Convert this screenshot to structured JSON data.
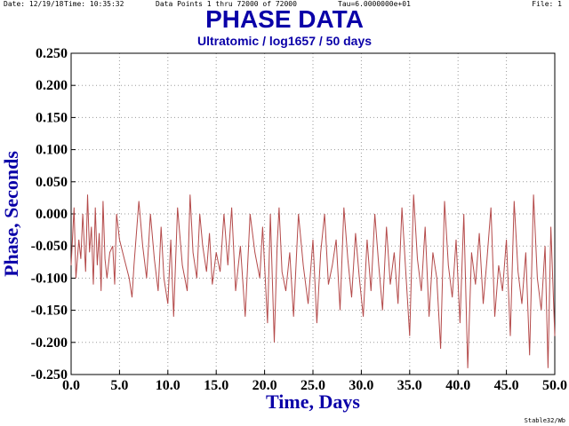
{
  "header": {
    "date": "Date: 12/19/18",
    "time": "Time: 10:35:32",
    "points": "Data Points 1 thru 72000 of 72000",
    "tau": "Tau=6.0000000e+01",
    "file": "File: 1"
  },
  "footer": {
    "program": "Stable32/Wb"
  },
  "colors": {
    "title": "#0a00a8",
    "trace": "#b44a4a",
    "grid": "#9a9a9a"
  },
  "chart_data": {
    "type": "line",
    "title": "PHASE DATA",
    "subtitle": "Ultratomic / log1657 / 50 days",
    "xlabel": "Time, Days",
    "ylabel": "Phase, Seconds",
    "xlim": [
      0,
      50
    ],
    "ylim": [
      -0.25,
      0.25
    ],
    "grid": true,
    "xticks": [
      0,
      5,
      10,
      15,
      20,
      25,
      30,
      35,
      40,
      45,
      50
    ],
    "xtick_labels": [
      "0.0",
      "5.0",
      "10.0",
      "15.0",
      "20.0",
      "25.0",
      "30.0",
      "35.0",
      "40.0",
      "45.0",
      "50.0"
    ],
    "yticks": [
      0.25,
      0.2,
      0.15,
      0.1,
      0.05,
      0.0,
      -0.05,
      -0.1,
      -0.15,
      -0.2,
      -0.25
    ],
    "ytick_labels": [
      "0.250",
      "0.200",
      "0.150",
      "0.100",
      "0.050",
      "0.000",
      "-0.050",
      "-0.100",
      "-0.150",
      "-0.200",
      "-0.250"
    ],
    "series": [
      {
        "x": [
          0.0,
          0.3,
          0.5,
          0.8,
          1.0,
          1.2,
          1.5,
          1.7,
          1.9,
          2.1,
          2.3,
          2.5,
          2.7,
          2.9,
          3.1,
          3.3,
          3.5,
          3.7,
          4.0,
          4.3,
          4.5,
          4.7,
          5.0,
          5.5,
          6.0,
          6.3,
          6.5,
          7.0,
          7.4,
          7.8,
          8.2,
          8.6,
          9.0,
          9.3,
          9.6,
          10.0,
          10.3,
          10.6,
          11.0,
          11.5,
          12.0,
          12.3,
          12.6,
          13.0,
          13.3,
          13.6,
          14.0,
          14.3,
          14.6,
          15.0,
          15.4,
          15.8,
          16.2,
          16.6,
          17.0,
          17.5,
          18.0,
          18.5,
          19.0,
          19.5,
          19.8,
          20.3,
          20.6,
          21.0,
          21.3,
          21.5,
          21.8,
          22.2,
          22.6,
          23.0,
          23.5,
          24.0,
          24.5,
          25.0,
          25.4,
          25.8,
          26.2,
          26.6,
          27.0,
          27.4,
          27.8,
          28.2,
          28.6,
          29.0,
          29.4,
          29.8,
          30.2,
          30.6,
          31.0,
          31.4,
          31.8,
          32.2,
          32.6,
          33.0,
          33.4,
          33.8,
          34.2,
          34.6,
          35.0,
          35.4,
          35.8,
          36.2,
          36.6,
          37.0,
          37.4,
          37.8,
          38.2,
          38.6,
          39.0,
          39.4,
          39.8,
          40.2,
          40.6,
          41.0,
          41.4,
          41.8,
          42.2,
          42.6,
          43.0,
          43.4,
          43.8,
          44.2,
          44.6,
          45.0,
          45.4,
          45.8,
          46.2,
          46.6,
          47.0,
          47.4,
          47.8,
          48.2,
          48.6,
          49.0,
          49.3,
          49.6,
          50.0
        ],
        "y": [
          -0.08,
          0.01,
          -0.1,
          -0.04,
          -0.07,
          0.0,
          -0.09,
          0.03,
          -0.06,
          -0.02,
          -0.11,
          0.01,
          -0.08,
          -0.03,
          -0.12,
          0.02,
          -0.07,
          -0.1,
          -0.06,
          -0.05,
          -0.11,
          0.0,
          -0.04,
          -0.07,
          -0.1,
          -0.13,
          -0.08,
          0.02,
          -0.05,
          -0.1,
          0.0,
          -0.07,
          -0.12,
          -0.02,
          -0.1,
          -0.14,
          -0.04,
          -0.16,
          0.01,
          -0.08,
          -0.12,
          0.03,
          -0.06,
          -0.1,
          0.0,
          -0.05,
          -0.09,
          -0.03,
          -0.11,
          -0.06,
          -0.09,
          0.0,
          -0.08,
          0.01,
          -0.12,
          -0.05,
          -0.16,
          0.0,
          -0.06,
          -0.1,
          -0.02,
          -0.17,
          0.0,
          -0.2,
          -0.05,
          0.01,
          -0.09,
          -0.12,
          -0.06,
          -0.16,
          0.0,
          -0.08,
          -0.14,
          -0.04,
          -0.17,
          -0.06,
          0.0,
          -0.11,
          -0.08,
          -0.04,
          -0.15,
          0.01,
          -0.07,
          -0.13,
          -0.03,
          -0.1,
          -0.16,
          -0.04,
          -0.12,
          0.0,
          -0.08,
          -0.15,
          -0.02,
          -0.11,
          -0.06,
          -0.14,
          0.01,
          -0.09,
          -0.19,
          0.03,
          -0.07,
          -0.12,
          -0.02,
          -0.16,
          -0.06,
          -0.1,
          -0.21,
          0.02,
          -0.08,
          -0.13,
          -0.04,
          -0.17,
          0.0,
          -0.24,
          -0.06,
          -0.11,
          -0.03,
          -0.14,
          -0.07,
          0.01,
          -0.16,
          -0.08,
          -0.12,
          -0.04,
          -0.19,
          0.02,
          -0.09,
          -0.14,
          -0.06,
          -0.22,
          0.03,
          -0.1,
          -0.15,
          -0.05,
          -0.24,
          -0.02,
          -0.19
        ]
      }
    ]
  }
}
